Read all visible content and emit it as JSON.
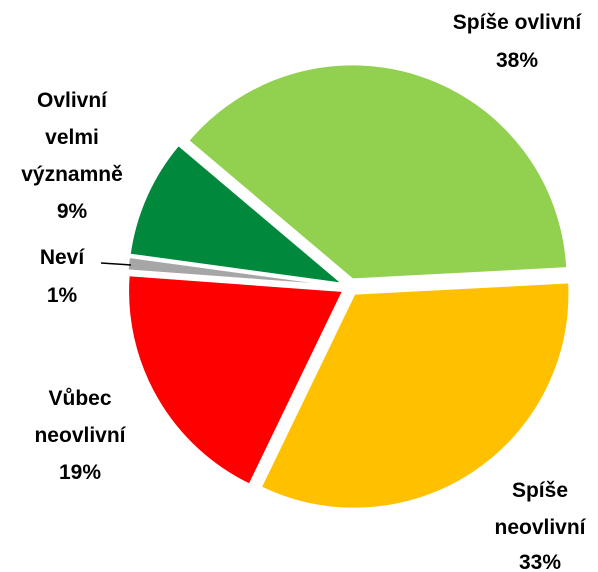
{
  "chart_data": {
    "type": "pie",
    "categories": [
      "Spíše ovlivní",
      "Spíše neovlivní",
      "Vůbec neovlivní",
      "Neví",
      "Ovlivní velmi významně"
    ],
    "values": [
      38,
      33,
      19,
      1,
      9
    ],
    "value_labels": [
      "38%",
      "33%",
      "19%",
      "1%",
      "9%"
    ],
    "colors": [
      "#92d050",
      "#ffc000",
      "#ff0000",
      "#a6a6a6",
      "#00893c"
    ]
  }
}
